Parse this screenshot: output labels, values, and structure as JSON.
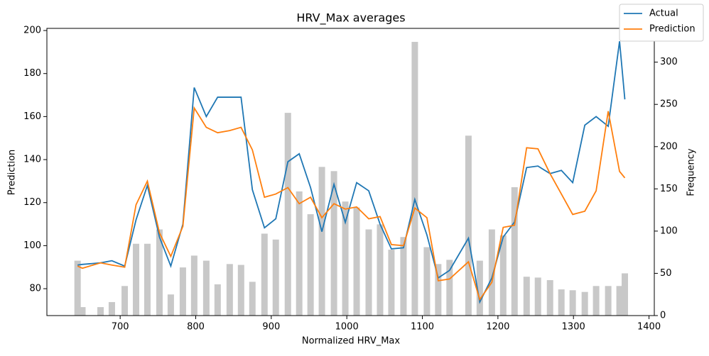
{
  "chart_data": {
    "type": "line",
    "title": "HRV_Max averages",
    "x_label": "Normalized HRV_Max",
    "y_label": "Prediction",
    "y2_label": "Frequency",
    "x": [
      643.6,
      650,
      674,
      689,
      706,
      721,
      736,
      752,
      767,
      783,
      798,
      814,
      829,
      845,
      860,
      875,
      891,
      906,
      922,
      937,
      952,
      967,
      983,
      998,
      1013,
      1029,
      1044,
      1059,
      1075,
      1090,
      1106,
      1121,
      1136,
      1161,
      1176,
      1192,
      1207,
      1222,
      1238,
      1253,
      1269,
      1284,
      1299,
      1315,
      1330,
      1346,
      1361,
      1368
    ],
    "series": [
      {
        "name": "Actual",
        "color": "#1f77b4",
        "values": [
          91,
          91.3,
          92,
          93,
          90.5,
          112,
          128,
          104,
          90.5,
          110,
          173.5,
          160,
          169,
          169,
          169,
          126,
          108.3,
          112.5,
          139,
          142.7,
          127,
          106.5,
          128.5,
          110.8,
          129.3,
          125.5,
          110,
          98.5,
          99,
          121.5,
          105,
          85,
          88.5,
          103.5,
          73.8,
          85,
          104,
          111,
          136.3,
          137,
          133.5,
          135,
          129.3,
          156,
          160,
          155.5,
          195,
          168
        ]
      },
      {
        "name": "Prediction",
        "color": "#ff7f0e",
        "values": [
          90.5,
          89.5,
          92,
          91,
          90,
          119,
          130,
          106,
          95,
          109,
          164,
          155,
          152.5,
          153.5,
          155,
          144.5,
          122.5,
          124,
          127,
          119.5,
          122.5,
          113,
          119.5,
          117,
          118,
          112.5,
          113.5,
          100.5,
          100,
          117.5,
          113,
          83.7,
          84.5,
          92.5,
          75,
          83,
          108.5,
          109.5,
          145.5,
          145,
          133.5,
          124,
          114.5,
          116,
          125.5,
          162.5,
          134.5,
          131.5
        ]
      }
    ],
    "bars": {
      "axis": "y2",
      "color": "#c8c8c8",
      "values": [
        65,
        10,
        10,
        16,
        35,
        85,
        85,
        102,
        25,
        57,
        71,
        65,
        37,
        61,
        60,
        40,
        97,
        90,
        240,
        147,
        120,
        176,
        171,
        135,
        128,
        102,
        108,
        78,
        93,
        324,
        81,
        61,
        66,
        213,
        65,
        102,
        95,
        152,
        46,
        45,
        42,
        31,
        30,
        28,
        35,
        35,
        35,
        50
      ]
    },
    "xlim": [
      603,
      1407
    ],
    "xticks": [
      700,
      800,
      900,
      1000,
      1100,
      1200,
      1300,
      1400
    ],
    "ylim": [
      67.5,
      201
    ],
    "yticks": [
      80,
      100,
      120,
      140,
      160,
      180,
      200
    ],
    "y2lim": [
      0,
      340
    ],
    "y2ticks": [
      0,
      50,
      100,
      150,
      200,
      250,
      300
    ],
    "legend": "upper right"
  }
}
